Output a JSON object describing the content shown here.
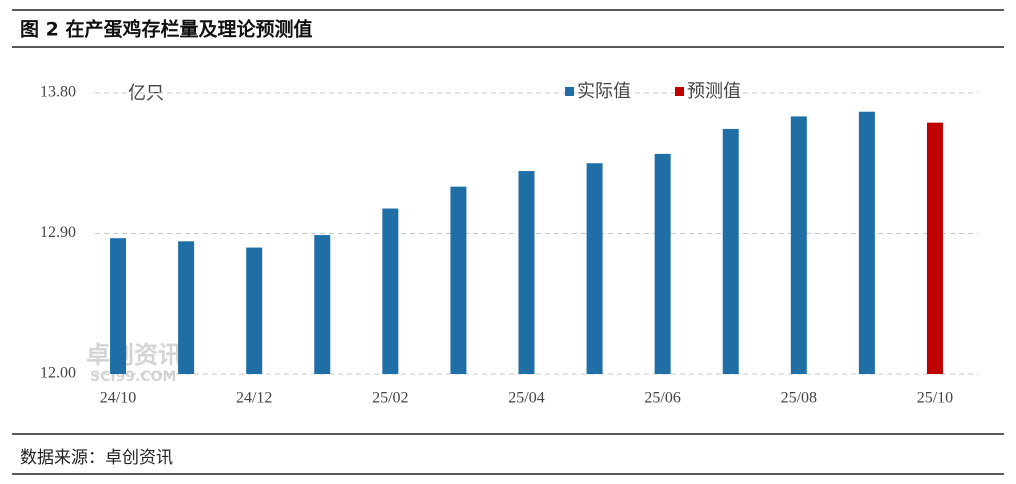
{
  "chart_data": {
    "type": "bar",
    "title": "图 2 在产蛋鸡存栏量及理论预测值",
    "y_unit": "亿只",
    "source": "数据来源：卓创资讯",
    "watermark": [
      "卓创资讯",
      "SCI99.COM"
    ],
    "categories": [
      "24/10",
      null,
      "24/12",
      null,
      "25/02",
      null,
      "25/04",
      null,
      "25/06",
      null,
      "25/08",
      null,
      "25/10"
    ],
    "series": [
      {
        "name": "实际值",
        "color": "#1f6fa6",
        "values": [
          12.87,
          12.85,
          12.81,
          12.89,
          13.06,
          13.2,
          13.3,
          13.35,
          13.41,
          13.57,
          13.65,
          13.68,
          null
        ]
      },
      {
        "name": "预测值",
        "color": "#c00000",
        "values": [
          null,
          null,
          null,
          null,
          null,
          null,
          null,
          null,
          null,
          null,
          null,
          null,
          13.61
        ]
      }
    ],
    "ylim": [
      12.0,
      13.8
    ],
    "yticks": [
      {
        "value": 12.0,
        "label": "12.00"
      },
      {
        "value": 12.9,
        "label": "12.90"
      },
      {
        "value": 13.8,
        "label": "13.80"
      }
    ],
    "grid": true
  }
}
